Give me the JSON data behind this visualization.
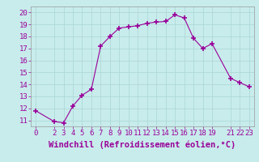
{
  "x": [
    0,
    2,
    3,
    4,
    5,
    6,
    7,
    8,
    9,
    10,
    11,
    12,
    13,
    14,
    15,
    16,
    17,
    18,
    19,
    21,
    22,
    23
  ],
  "y": [
    11.8,
    10.9,
    10.8,
    12.2,
    13.1,
    13.6,
    17.2,
    18.0,
    18.7,
    18.8,
    18.9,
    19.1,
    19.2,
    19.25,
    19.8,
    19.55,
    17.85,
    17.0,
    17.4,
    14.5,
    14.15,
    13.8
  ],
  "line_color": "#990099",
  "marker_color": "#990099",
  "bg_color": "#c8ecec",
  "grid_color": "#b0d8d8",
  "xlabel": "Windchill (Refroidissement éolien,°C)",
  "xlabel_color": "#990099",
  "xticks": [
    0,
    2,
    3,
    4,
    5,
    6,
    7,
    8,
    9,
    10,
    11,
    12,
    13,
    14,
    15,
    16,
    17,
    18,
    19,
    21,
    22,
    23
  ],
  "yticks": [
    11,
    12,
    13,
    14,
    15,
    16,
    17,
    18,
    19,
    20
  ],
  "ylim": [
    10.5,
    20.5
  ],
  "xlim": [
    -0.5,
    23.5
  ],
  "tick_color": "#990099",
  "font_size": 6.5,
  "xlabel_fontsize": 7.5
}
